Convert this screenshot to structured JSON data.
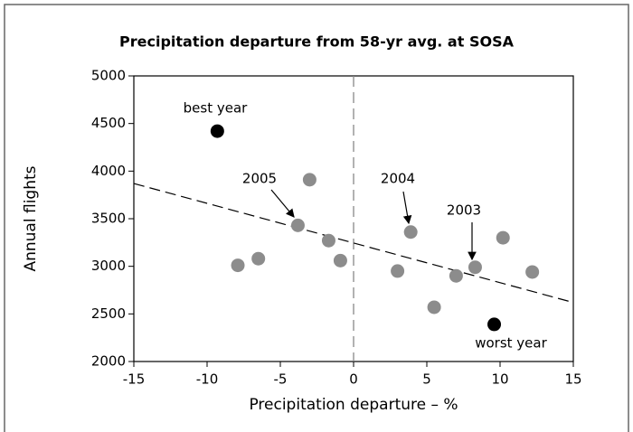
{
  "chart_data": {
    "type": "scatter",
    "title": "Precipitation departure from 58-yr avg. at SOSA",
    "xlabel": "Precipitation departure – %",
    "ylabel": "Annual flights",
    "x": [
      -9.3,
      -7.9,
      -6.5,
      -3.0,
      -3.8,
      -1.7,
      -0.9,
      3.0,
      3.9,
      5.5,
      7.0,
      8.3,
      9.6,
      10.2,
      12.2
    ],
    "values": [
      4420,
      3010,
      3080,
      3910,
      3430,
      3270,
      3060,
      2950,
      3360,
      2570,
      2900,
      2990,
      2390,
      3300,
      2940
    ],
    "colors": [
      "#000000",
      "#8c8c8c",
      "#8c8c8c",
      "#8c8c8c",
      "#8c8c8c",
      "#8c8c8c",
      "#8c8c8c",
      "#8c8c8c",
      "#8c8c8c",
      "#8c8c8c",
      "#8c8c8c",
      "#8c8c8c",
      "#000000",
      "#8c8c8c",
      "#8c8c8c"
    ],
    "trend": {
      "x": [
        -15,
        15
      ],
      "values": [
        3870,
        2620
      ]
    },
    "annotations": [
      "best year",
      "2005",
      "2004",
      "2003",
      "worst year"
    ],
    "xlim": [
      -15,
      15
    ],
    "xticks": [
      -15,
      -10,
      -5,
      0,
      5,
      10,
      15
    ],
    "ylim": [
      2000,
      5000
    ],
    "yticks": [
      2000,
      2500,
      3000,
      3500,
      4000,
      4500,
      5000
    ]
  }
}
